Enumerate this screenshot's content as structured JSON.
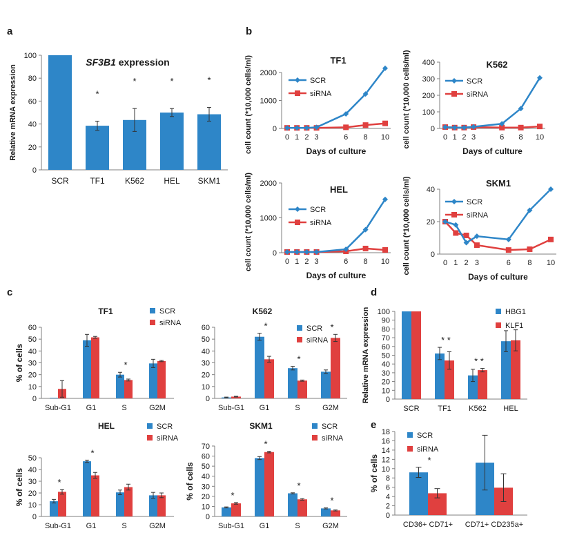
{
  "colors": {
    "scr": "#2E86C8",
    "sirna": "#E0403F",
    "axis": "#7f7f7f",
    "text": "#1a1a1a"
  },
  "panel_labels": [
    "a",
    "b",
    "c",
    "d",
    "e"
  ],
  "chart_data": [
    {
      "id": "a",
      "type": "bar",
      "title": "SF3B1 expression",
      "title_italic": "SF3B1",
      "title_rest": " expression",
      "ylabel": "Relative mRNA expression",
      "xlabel": "",
      "ylim": [
        0,
        100
      ],
      "yticks": [
        0,
        20,
        40,
        60,
        80,
        100
      ],
      "categories": [
        "SCR",
        "TF1",
        "K562",
        "HEL",
        "SKM1"
      ],
      "series": [
        {
          "values": [
            100,
            38.5,
            43.5,
            50,
            48.5
          ],
          "errors": [
            0,
            4,
            10,
            3.5,
            6
          ],
          "color": "#2E86C8"
        }
      ],
      "stars": [
        "",
        "*",
        "*",
        "*",
        "*"
      ]
    },
    {
      "id": "b1",
      "type": "line",
      "title": "TF1",
      "xlabel": "Days of culture",
      "ylabel": "cell count (*10,000 cells/ml)",
      "x": [
        0,
        1,
        2,
        3,
        6,
        8,
        10
      ],
      "xtick_labels": [
        "0",
        "1",
        "2",
        "3",
        "6",
        "8",
        "10"
      ],
      "ylim": [
        0,
        2000
      ],
      "yticks": [
        0,
        1000,
        2000
      ],
      "series": [
        {
          "name": "SCR",
          "values": [
            20,
            20,
            20,
            40,
            520,
            1230,
            2150
          ]
        },
        {
          "name": "siRNA",
          "values": [
            20,
            20,
            20,
            20,
            40,
            120,
            180
          ]
        }
      ],
      "legend": "top-left"
    },
    {
      "id": "b2",
      "type": "line",
      "title": "K562",
      "xlabel": "Days of culture",
      "ylabel": "cell count (*10,000 cells/ml)",
      "x": [
        0,
        1,
        2,
        3,
        6,
        8,
        10
      ],
      "xtick_labels": [
        "0",
        "1",
        "2",
        "3",
        "6",
        "8",
        "10"
      ],
      "ylim": [
        0,
        400
      ],
      "yticks": [
        0,
        100,
        200,
        300,
        400
      ],
      "series": [
        {
          "name": "SCR",
          "values": [
            8,
            5,
            5,
            10,
            28,
            120,
            305
          ]
        },
        {
          "name": "siRNA",
          "values": [
            8,
            5,
            5,
            8,
            5,
            5,
            12
          ]
        }
      ],
      "legend": "top-left"
    },
    {
      "id": "b3",
      "type": "line",
      "title": "HEL",
      "xlabel": "Days of culture",
      "ylabel": "cell count (*10,000 cells/ml)",
      "x": [
        0,
        1,
        2,
        3,
        6,
        8,
        10
      ],
      "xtick_labels": [
        "0",
        "1",
        "2",
        "3",
        "6",
        "8",
        "10"
      ],
      "ylim": [
        0,
        2000
      ],
      "yticks": [
        0,
        1000,
        2000
      ],
      "series": [
        {
          "name": "SCR",
          "values": [
            20,
            20,
            20,
            20,
            100,
            660,
            1530
          ]
        },
        {
          "name": "siRNA",
          "values": [
            20,
            20,
            20,
            20,
            40,
            120,
            80
          ]
        }
      ],
      "legend": "top-left"
    },
    {
      "id": "b4",
      "type": "line",
      "title": "SKM1",
      "xlabel": "Days of culture",
      "ylabel": "cell count (*10,000 cells/ml)",
      "x": [
        0,
        1,
        2,
        3,
        6,
        8,
        10
      ],
      "xtick_labels": [
        "0",
        "1",
        "2",
        "3",
        "6",
        "8",
        "10"
      ],
      "ylim": [
        0,
        40
      ],
      "yticks": [
        0,
        20,
        40
      ],
      "series": [
        {
          "name": "SCR",
          "values": [
            20,
            18,
            7,
            11,
            9,
            27,
            40
          ]
        },
        {
          "name": "siRNA",
          "values": [
            20,
            13,
            11.5,
            5.5,
            2.5,
            3,
            9
          ]
        }
      ],
      "legend": "top-right"
    },
    {
      "id": "c1",
      "type": "bar",
      "title": "TF1",
      "ylabel": "% of cells",
      "xlabel": "",
      "ylim": [
        0,
        60
      ],
      "yticks": [
        0,
        10,
        20,
        30,
        40,
        50,
        60
      ],
      "categories": [
        "Sub-G1",
        "G1",
        "S",
        "G2M"
      ],
      "series": [
        {
          "name": "SCR",
          "values": [
            0.5,
            49,
            20,
            29.5
          ],
          "errors": [
            0,
            5,
            2,
            3.5
          ]
        },
        {
          "name": "siRNA",
          "values": [
            8,
            51.5,
            15.5,
            31.5
          ],
          "errors": [
            7,
            0.8,
            0.8,
            0.5
          ]
        }
      ],
      "stars": [
        "",
        "",
        "*",
        ""
      ],
      "legend": "top-right"
    },
    {
      "id": "c2",
      "type": "bar",
      "title": "K562",
      "ylabel": "",
      "xlabel": "",
      "ylim": [
        0,
        60
      ],
      "yticks": [
        0,
        10,
        20,
        30,
        40,
        50,
        60
      ],
      "categories": [
        "Sub-G1",
        "G1",
        "S",
        "G2M"
      ],
      "series": [
        {
          "name": "SCR",
          "values": [
            0.8,
            52,
            25.5,
            22.5
          ],
          "errors": [
            0.3,
            3,
            1.5,
            1.5
          ]
        },
        {
          "name": "siRNA",
          "values": [
            1.5,
            33,
            15,
            51
          ],
          "errors": [
            0.3,
            2.5,
            0.5,
            3
          ]
        }
      ],
      "stars": [
        "",
        "*",
        "*",
        "*"
      ],
      "legend": "top-middle"
    },
    {
      "id": "c3",
      "type": "bar",
      "title": "HEL",
      "ylabel": "% of cells",
      "xlabel": "",
      "ylim": [
        0,
        50
      ],
      "yticks": [
        0,
        10,
        20,
        30,
        40,
        50
      ],
      "categories": [
        "Sub-G1",
        "G1",
        "S",
        "G2M"
      ],
      "series": [
        {
          "name": "SCR",
          "values": [
            13,
            47,
            20.5,
            18
          ],
          "errors": [
            1.5,
            1,
            2,
            2.5
          ]
        },
        {
          "name": "siRNA",
          "values": [
            21,
            35,
            25,
            18
          ],
          "errors": [
            2,
            2.5,
            2.5,
            2
          ]
        }
      ],
      "stars": [
        "*",
        "*",
        "",
        ""
      ],
      "legend": "top-right"
    },
    {
      "id": "c4",
      "type": "bar",
      "title": "SKM1",
      "ylabel": "% of cells",
      "xlabel": "",
      "ylim": [
        0,
        70
      ],
      "yticks": [
        0,
        10,
        20,
        30,
        40,
        50,
        60,
        70
      ],
      "categories": [
        "Sub-G1",
        "G1",
        "S",
        "G2M"
      ],
      "series": [
        {
          "name": "SCR",
          "values": [
            9,
            58,
            23,
            8
          ],
          "errors": [
            0.5,
            1.5,
            0.5,
            0.5
          ]
        },
        {
          "name": "siRNA",
          "values": [
            13,
            64,
            17,
            6
          ],
          "errors": [
            0.8,
            0.8,
            0.8,
            0.5
          ]
        }
      ],
      "stars": [
        "*",
        "*",
        "*",
        "*"
      ],
      "legend": "top-right"
    },
    {
      "id": "d",
      "type": "bar",
      "title": "",
      "ylabel": "Relative mRNA expression",
      "xlabel": "",
      "ylim": [
        0,
        100
      ],
      "yticks": [
        0,
        10,
        20,
        30,
        40,
        50,
        60,
        70,
        80,
        90,
        100
      ],
      "categories": [
        "SCR",
        "TF1",
        "K562",
        "HEL"
      ],
      "series": [
        {
          "name": "HBG1",
          "values": [
            100,
            52,
            27,
            66
          ],
          "errors": [
            0,
            7,
            7,
            12
          ]
        },
        {
          "name": "KLF1",
          "values": [
            100,
            44,
            33,
            67
          ],
          "errors": [
            0,
            10,
            2,
            12
          ]
        }
      ],
      "stars": [
        "",
        "* *",
        "* *",
        ""
      ],
      "legend": "top-right"
    },
    {
      "id": "e",
      "type": "bar",
      "title": "",
      "ylabel": "% of cells",
      "xlabel": "",
      "ylim": [
        0,
        18
      ],
      "yticks": [
        0,
        2,
        4,
        6,
        8,
        10,
        12,
        14,
        16,
        18
      ],
      "categories": [
        "CD36+ CD71+",
        "CD71+ CD235a+"
      ],
      "series": [
        {
          "name": "SCR",
          "values": [
            9.2,
            11.3
          ],
          "errors": [
            1.1,
            5.9
          ]
        },
        {
          "name": "siRNA",
          "values": [
            4.7,
            5.9
          ],
          "errors": [
            1.0,
            3.0
          ]
        }
      ],
      "stars": [
        "*",
        ""
      ],
      "legend": "top-left"
    }
  ]
}
